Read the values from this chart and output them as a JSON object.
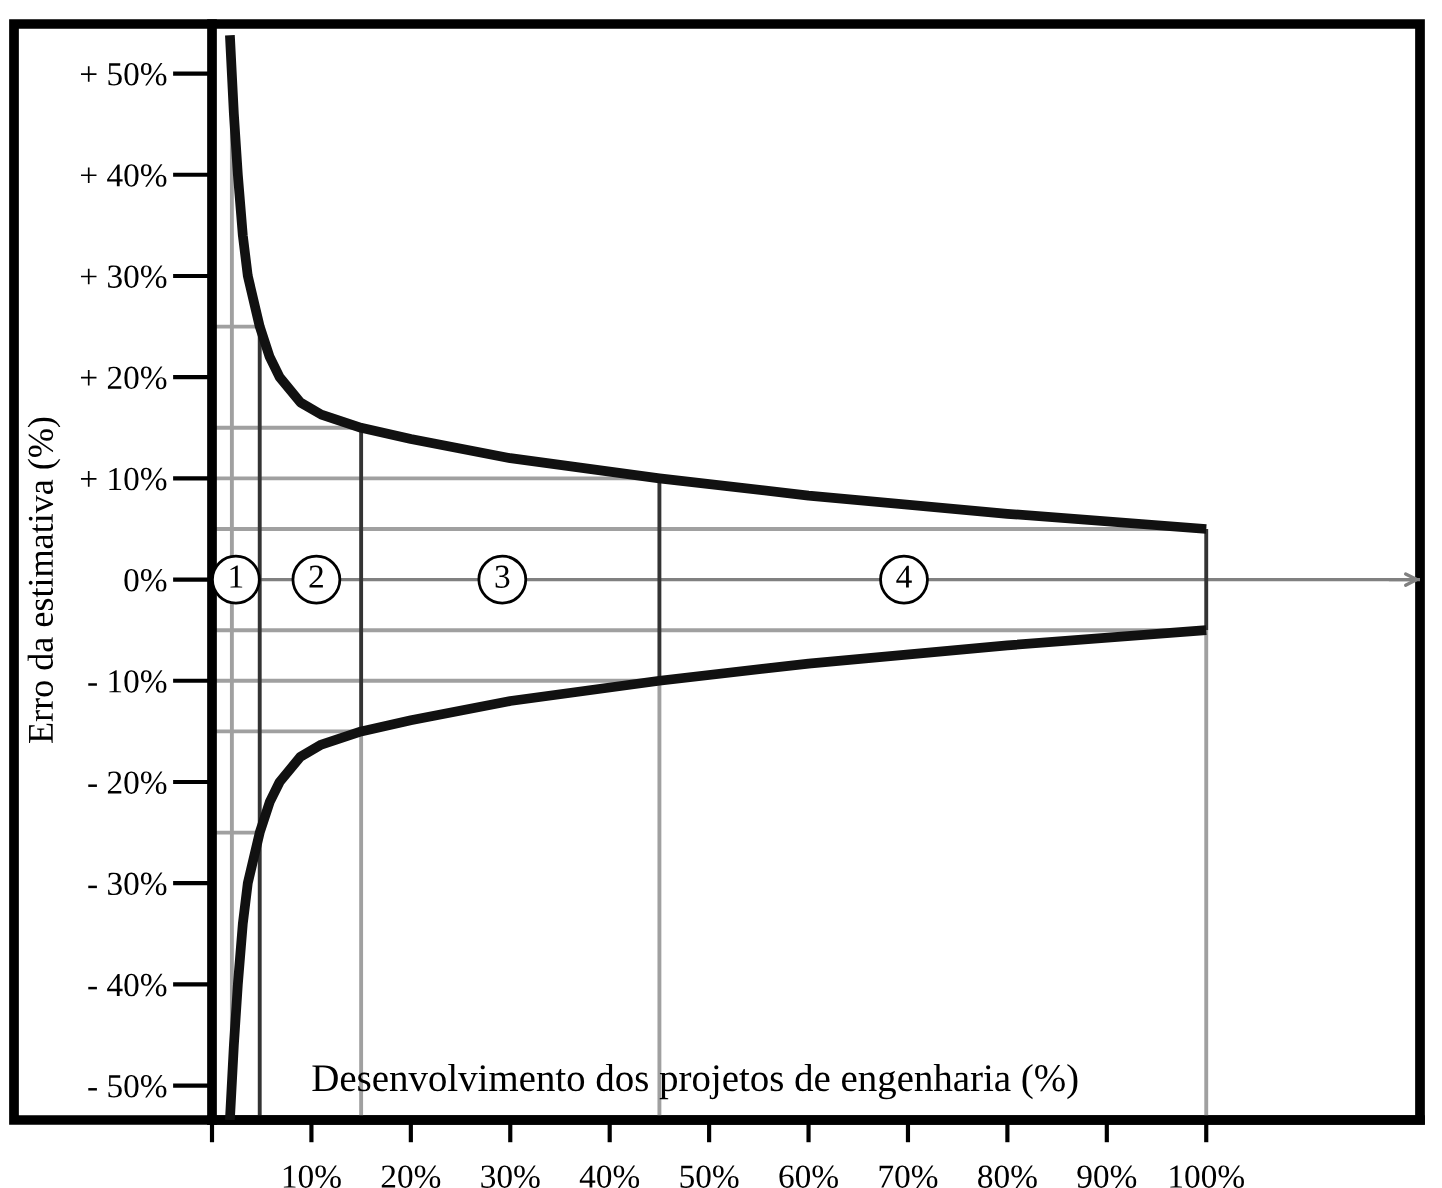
{
  "chart_data": {
    "type": "line",
    "xlabel": "Desenvolvimento dos projetos de engenharia (%)",
    "ylabel": "Erro da estimativa (%)",
    "xlim": [
      0,
      121.5
    ],
    "ylim": [
      -53.4,
      54.9
    ],
    "xticks": [
      {
        "value": 0,
        "label": null
      },
      {
        "value": 10,
        "label": "10%"
      },
      {
        "value": 20,
        "label": "20%"
      },
      {
        "value": 30,
        "label": "30%"
      },
      {
        "value": 40,
        "label": "40%"
      },
      {
        "value": 50,
        "label": "50%"
      },
      {
        "value": 60,
        "label": "60%"
      },
      {
        "value": 70,
        "label": "70%"
      },
      {
        "value": 80,
        "label": "80%"
      },
      {
        "value": 90,
        "label": "90%"
      },
      {
        "value": 100,
        "label": "100%"
      }
    ],
    "yticks": [
      {
        "value": 50,
        "label": "+ 50%"
      },
      {
        "value": 40,
        "label": "+ 40%"
      },
      {
        "value": 30,
        "label": "+ 30%"
      },
      {
        "value": 20,
        "label": "+ 20%"
      },
      {
        "value": 10,
        "label": "+ 10%"
      },
      {
        "value": 0,
        "label": "0%"
      },
      {
        "value": -10,
        "label": "- 10%"
      },
      {
        "value": -20,
        "label": "- 20%"
      },
      {
        "value": -30,
        "label": "- 30%"
      },
      {
        "value": -40,
        "label": "- 40%"
      },
      {
        "value": -50,
        "label": "- 50%"
      }
    ],
    "grid": false,
    "legend": false,
    "marker": "none",
    "line_style": "solid",
    "series": [
      {
        "color": "#111111",
        "x": [
          1.8,
          2.2,
          2.6,
          3.1,
          3.6,
          4.8,
          5.8,
          6.8,
          8.9,
          11,
          15,
          20,
          30,
          45,
          60,
          80,
          100
        ],
        "values": [
          53.8,
          46,
          40,
          34,
          30,
          25,
          22,
          20,
          17.5,
          16.3,
          15,
          13.9,
          12,
          10,
          8.3,
          6.5,
          5
        ]
      },
      {
        "color": "#111111",
        "x": [
          1.8,
          2.2,
          2.6,
          3.1,
          3.6,
          4.8,
          5.8,
          6.8,
          8.9,
          11,
          15,
          20,
          30,
          45,
          60,
          80,
          100
        ],
        "values": [
          -53.4,
          -46,
          -40,
          -34,
          -30,
          -25,
          -22,
          -20,
          -17.5,
          -16.3,
          -15,
          -13.9,
          -12,
          -10,
          -8.3,
          -6.5,
          -5
        ]
      },
      {
        "color": "#a0a0a0",
        "x": [
          2,
          2
        ],
        "values": [
          52.6,
          -53.4
        ]
      },
      {
        "color": "#a0a0a0",
        "x": [
          0,
          4.8
        ],
        "values": [
          25,
          25
        ]
      },
      {
        "color": "#a0a0a0",
        "x": [
          0,
          4.8
        ],
        "values": [
          -25,
          -25
        ]
      },
      {
        "color": "#a0a0a0",
        "x": [
          0,
          15
        ],
        "values": [
          15,
          15
        ]
      },
      {
        "color": "#a0a0a0",
        "x": [
          0,
          15
        ],
        "values": [
          -15,
          -15
        ]
      },
      {
        "color": "#a0a0a0",
        "x": [
          0,
          45
        ],
        "values": [
          10,
          10
        ]
      },
      {
        "color": "#a0a0a0",
        "x": [
          0,
          45
        ],
        "values": [
          -10,
          -10
        ]
      },
      {
        "color": "#a0a0a0",
        "x": [
          0,
          100
        ],
        "values": [
          5,
          5
        ]
      },
      {
        "color": "#a0a0a0",
        "x": [
          0,
          100
        ],
        "values": [
          -5,
          -5
        ]
      },
      {
        "color": "#a0a0a0",
        "x": [
          15,
          15
        ],
        "values": [
          -15,
          -53.4
        ]
      },
      {
        "color": "#a0a0a0",
        "x": [
          45,
          45
        ],
        "values": [
          -10,
          -53.4
        ]
      },
      {
        "color": "#a0a0a0",
        "x": [
          100,
          100
        ],
        "values": [
          -5,
          -53.4
        ]
      },
      {
        "color": "#333333",
        "x": [
          4.8,
          4.8
        ],
        "values": [
          25,
          -53.4
        ]
      },
      {
        "color": "#333333",
        "x": [
          15,
          15
        ],
        "values": [
          15,
          -15
        ]
      },
      {
        "color": "#333333",
        "x": [
          45,
          45
        ],
        "values": [
          10,
          -10
        ]
      },
      {
        "color": "#333333",
        "x": [
          100,
          100
        ],
        "values": [
          5,
          -5
        ]
      }
    ],
    "ref_lines": [
      {
        "axis": "y",
        "value": 0,
        "color": "#808080"
      }
    ],
    "annotations": [
      {
        "text": "1",
        "x": 2.4,
        "y": 0
      },
      {
        "text": "2",
        "x": 10.5,
        "y": 0
      },
      {
        "text": "3",
        "x": 29.2,
        "y": 0
      },
      {
        "text": "4",
        "x": 69.6,
        "y": 0
      }
    ]
  }
}
